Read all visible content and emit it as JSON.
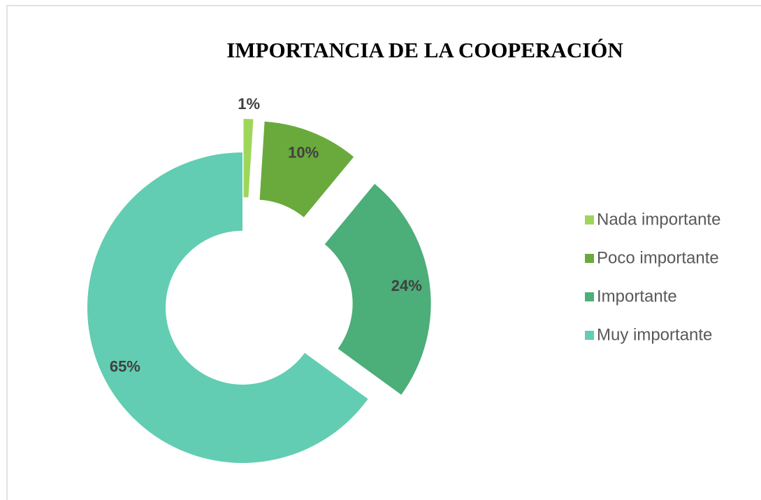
{
  "chart_data": {
    "type": "donut",
    "title": "IMPORTANCIA DE LA COOPERACIÓN",
    "categories": [
      "Nada importante",
      "Poco importante",
      "Importante",
      "Muy importante"
    ],
    "values": [
      1,
      10,
      24,
      65
    ],
    "value_labels": [
      "1%",
      "10%",
      "24%",
      "65%"
    ],
    "colors": [
      "#9ed65a",
      "#6aaa3c",
      "#4cae79",
      "#62cdb2"
    ],
    "legend": "right"
  }
}
